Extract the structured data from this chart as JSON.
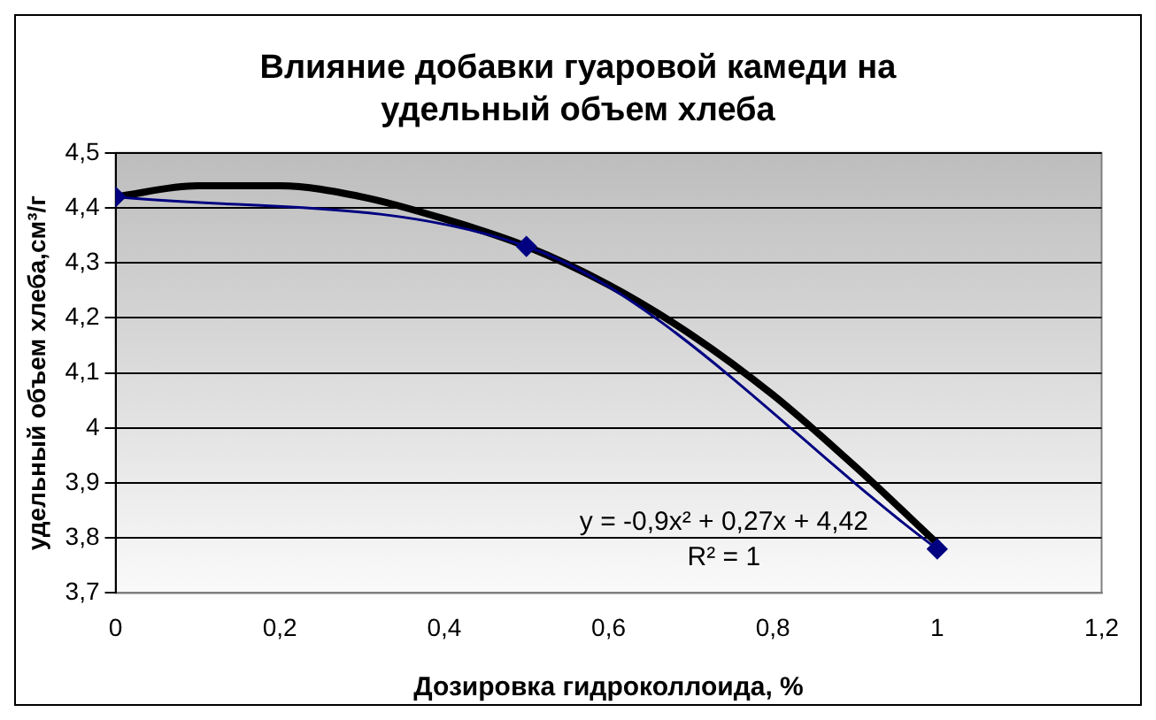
{
  "chart_data": {
    "type": "line",
    "title": "Влияние добавки гуаровой камеди на удельный объем хлеба",
    "xlabel": "Дозировка гидроколлоида, %",
    "ylabel": "удельный объем хлеба,см³/г",
    "series": [
      {
        "type": "line",
        "color": "#000080",
        "marker": "diamond",
        "x": [
          0,
          0.5,
          1
        ],
        "values": [
          4.42,
          4.33,
          3.78
        ]
      },
      {
        "type": "line",
        "color": "#000000",
        "marker": "none",
        "x": [
          0,
          0.1,
          0.2,
          0.3,
          0.4,
          0.5,
          0.6,
          0.7,
          0.8,
          0.9,
          1
        ],
        "values": [
          4.42,
          4.44,
          4.44,
          4.42,
          4.38,
          4.33,
          4.26,
          4.17,
          4.06,
          3.93,
          3.79
        ]
      }
    ],
    "annotations": [
      "y = -0,9x² + 0,27x + 4,42",
      "R² = 1"
    ],
    "xlim": [
      0,
      1.2
    ],
    "xticks": [
      {
        "value": 0,
        "label": "0"
      },
      {
        "value": 0.2,
        "label": "0,2"
      },
      {
        "value": 0.4,
        "label": "0,4"
      },
      {
        "value": 0.6,
        "label": "0,6"
      },
      {
        "value": 0.8,
        "label": "0,8"
      },
      {
        "value": 1,
        "label": "1"
      },
      {
        "value": 1.2,
        "label": "1,2"
      }
    ],
    "ylim": [
      3.7,
      4.5
    ],
    "yticks": [
      {
        "value": 3.7,
        "label": "3,7"
      },
      {
        "value": 3.8,
        "label": "3,8"
      },
      {
        "value": 3.9,
        "label": "3,9"
      },
      {
        "value": 4,
        "label": "4"
      },
      {
        "value": 4.1,
        "label": "4,1"
      },
      {
        "value": 4.2,
        "label": "4,2"
      },
      {
        "value": 4.3,
        "label": "4,3"
      },
      {
        "value": 4.4,
        "label": "4,4"
      },
      {
        "value": 4.5,
        "label": "4,5"
      }
    ],
    "grid": "y",
    "legend": false
  }
}
